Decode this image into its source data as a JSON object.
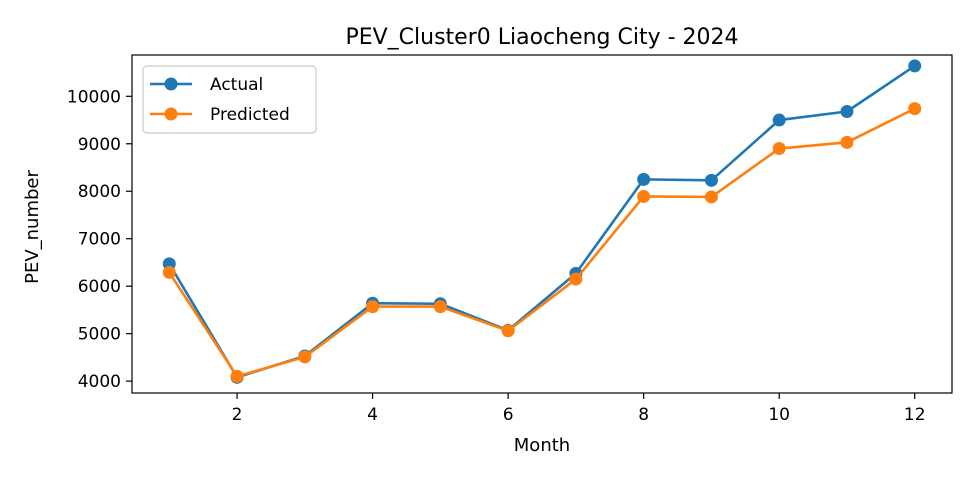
{
  "chart_data": {
    "type": "line",
    "title": "PEV_Cluster0 Liaocheng City - 2024",
    "xlabel": "Month",
    "ylabel": "PEV_number",
    "xlim": [
      0.45,
      12.55
    ],
    "ylim": [
      3750,
      10870
    ],
    "xticks": [
      2,
      4,
      6,
      8,
      10,
      12
    ],
    "yticks": [
      4000,
      5000,
      6000,
      7000,
      8000,
      9000,
      10000
    ],
    "grid": false,
    "legend_position": "upper-left",
    "x": [
      1,
      2,
      3,
      4,
      5,
      6,
      7,
      8,
      9,
      10,
      11,
      12
    ],
    "series": [
      {
        "name": "Actual",
        "color": "#1f77b4",
        "values": [
          6470,
          4080,
          4530,
          5640,
          5630,
          5070,
          6270,
          8250,
          8230,
          9500,
          9680,
          10640
        ]
      },
      {
        "name": "Predicted",
        "color": "#ff7f0e",
        "values": [
          6290,
          4100,
          4510,
          5570,
          5570,
          5060,
          6150,
          7890,
          7880,
          8900,
          9030,
          9740
        ]
      }
    ]
  }
}
